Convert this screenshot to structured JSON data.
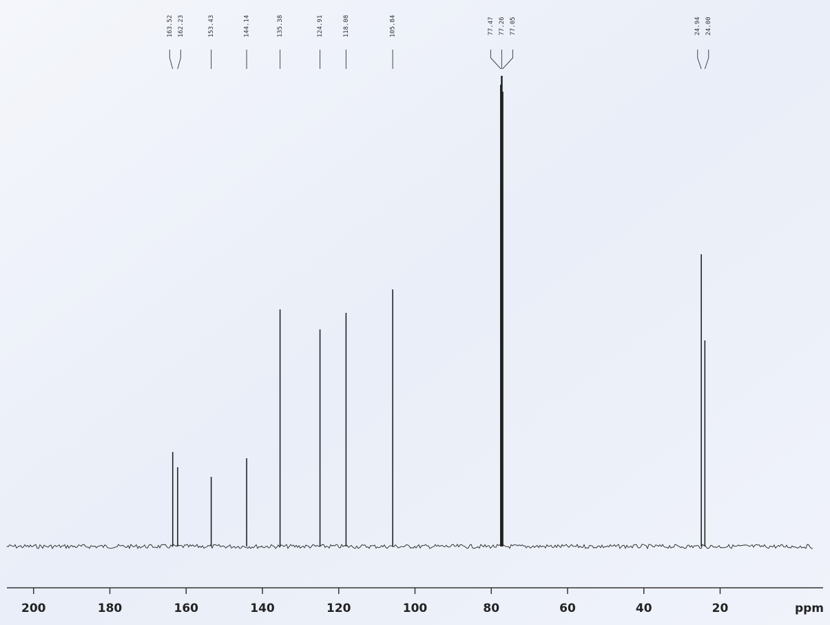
{
  "chart_data": {
    "type": "spectrum",
    "x": [
      163.52,
      162.23,
      153.43,
      144.14,
      135.38,
      124.91,
      118.08,
      105.84,
      77.47,
      77.26,
      77.05,
      24.94,
      24.0
    ],
    "peak_labels": [
      "163.52",
      "162.23",
      "153.43",
      "144.14",
      "135.38",
      "124.91",
      "118.08",
      "105.84",
      "77.47",
      "77.26",
      "77.05",
      "24.94",
      "24.00"
    ],
    "values": [
      137,
      115,
      101,
      128,
      344,
      315,
      339,
      373,
      670,
      683,
      660,
      424,
      299
    ],
    "color": "#222222",
    "xlim": [
      207,
      -7
    ],
    "xticks": [
      200,
      180,
      160,
      140,
      120,
      100,
      80,
      60,
      40,
      20
    ],
    "ylim": [
      0,
      700
    ],
    "xlabel": "ppm"
  }
}
